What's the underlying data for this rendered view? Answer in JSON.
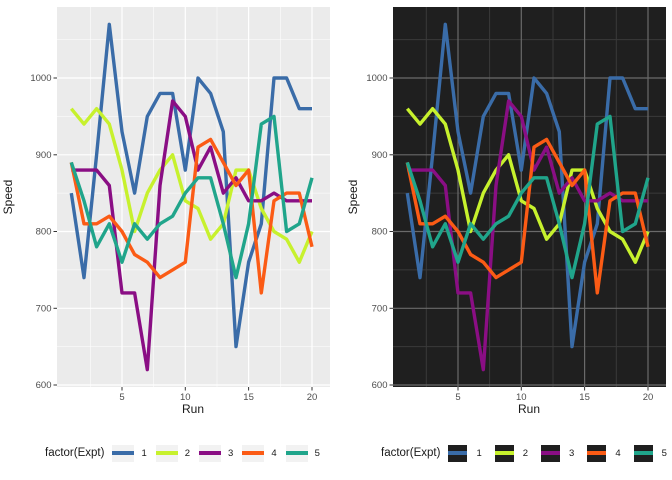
{
  "chart_data": {
    "type": "line",
    "xlabel": "Run",
    "ylabel": "Speed",
    "legend_title": "factor(Expt)",
    "x": [
      1,
      2,
      3,
      4,
      5,
      6,
      7,
      8,
      9,
      10,
      11,
      12,
      13,
      14,
      15,
      16,
      17,
      18,
      19,
      20
    ],
    "x_ticks": [
      5,
      10,
      15,
      20
    ],
    "y_ticks": [
      600,
      700,
      800,
      900,
      1000
    ],
    "x_minor": [
      2.5,
      7.5,
      12.5,
      17.5
    ],
    "y_minor": [
      650,
      750,
      850,
      950,
      1050
    ],
    "xlim": [
      0.05,
      20.95
    ],
    "ylim": [
      597,
      1092
    ],
    "series": [
      {
        "name": "1",
        "color": "#3A6CA8",
        "values": [
          850,
          740,
          900,
          1070,
          930,
          850,
          950,
          980,
          980,
          880,
          1000,
          980,
          930,
          650,
          760,
          810,
          1000,
          1000,
          960,
          960
        ]
      },
      {
        "name": "2",
        "color": "#C7F12D",
        "values": [
          960,
          940,
          960,
          940,
          880,
          800,
          850,
          880,
          900,
          840,
          830,
          790,
          810,
          880,
          880,
          830,
          800,
          790,
          760,
          800
        ]
      },
      {
        "name": "3",
        "color": "#8A0E84",
        "values": [
          880,
          880,
          880,
          860,
          720,
          720,
          620,
          860,
          970,
          950,
          880,
          910,
          850,
          870,
          840,
          840,
          850,
          840,
          840,
          840
        ]
      },
      {
        "name": "4",
        "color": "#FB5B15",
        "values": [
          890,
          810,
          810,
          820,
          800,
          770,
          760,
          740,
          750,
          760,
          910,
          920,
          890,
          860,
          880,
          720,
          840,
          850,
          850,
          780
        ]
      },
      {
        "name": "5",
        "color": "#20A58B",
        "values": [
          890,
          840,
          780,
          810,
          760,
          810,
          790,
          810,
          820,
          850,
          870,
          870,
          810,
          740,
          810,
          940,
          950,
          800,
          810,
          870
        ]
      }
    ],
    "panels": [
      {
        "id": "light",
        "panel_bg": "#EBEBEB",
        "grid_major": "#FFFFFF",
        "grid_minor": "#FFFFFF",
        "major_w": 1.2,
        "minor_w": 0.55,
        "legend_key_bg": "#F2F2F2"
      },
      {
        "id": "dark",
        "panel_bg": "#1F1F1F",
        "grid_major": "#6A6A6A",
        "grid_minor": "#3A3A3A",
        "major_w": 1.2,
        "minor_w": 1,
        "legend_key_bg": "#1F1F1F"
      }
    ],
    "axis": {
      "tick_color": "#333333",
      "tick_label_color": "#4D4D4D",
      "title_color": "#1A1A1A"
    }
  }
}
